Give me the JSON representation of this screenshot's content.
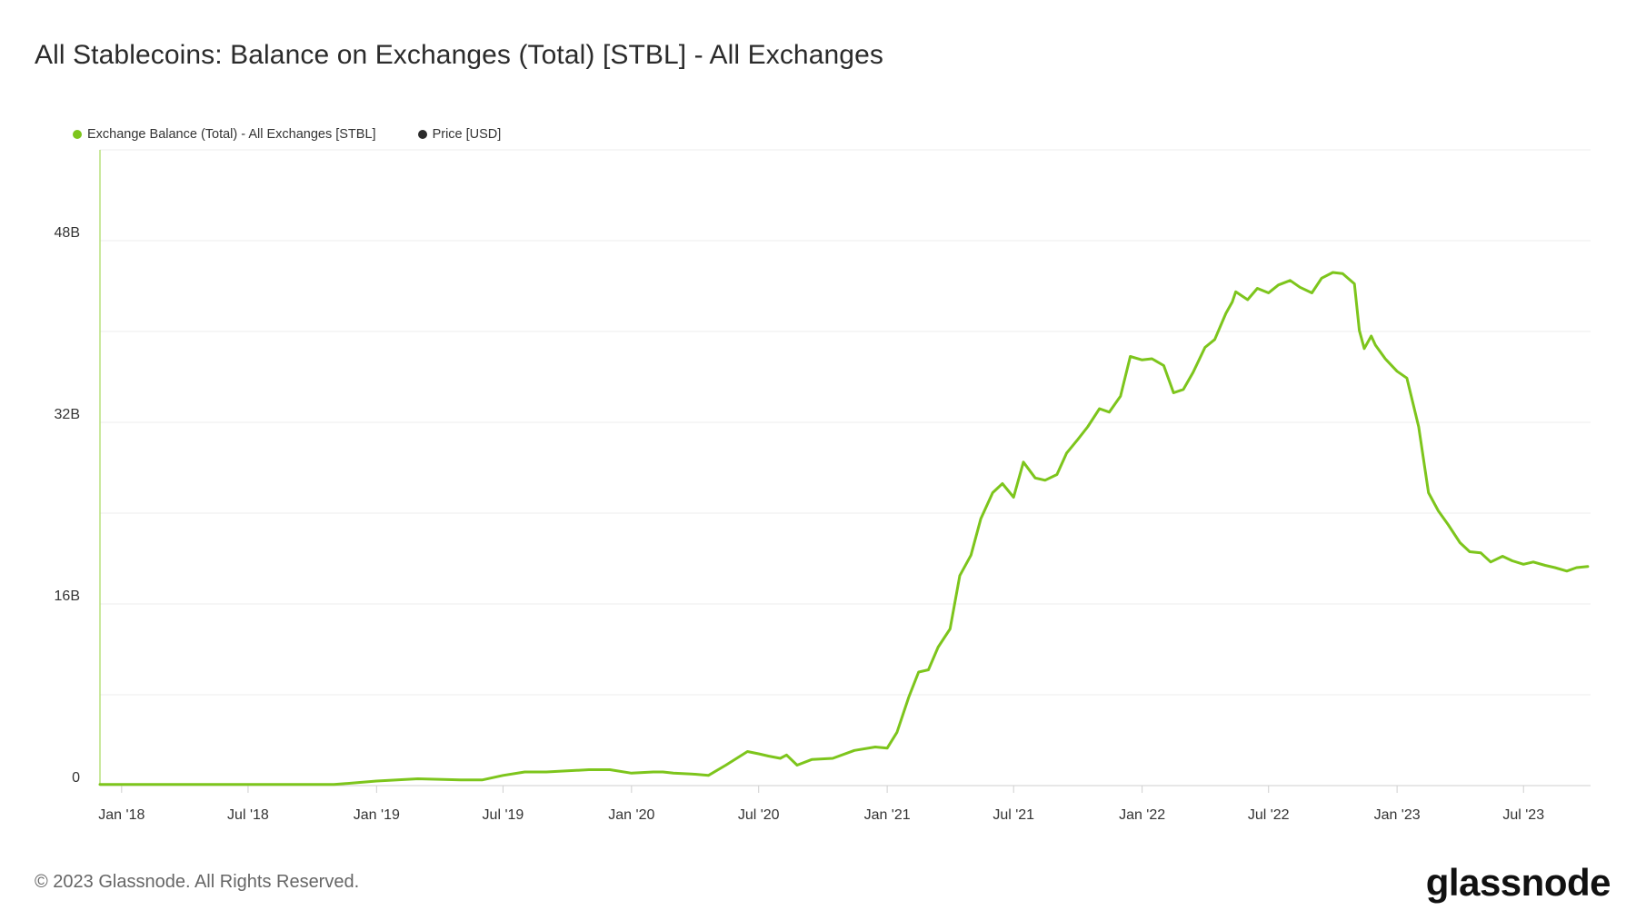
{
  "title": "All Stablecoins: Balance on Exchanges (Total) [STBL] - All Exchanges",
  "legend": [
    {
      "label": "Exchange Balance (Total) - All Exchanges [STBL]",
      "color": "#7dc51c"
    },
    {
      "label": "Price [USD]",
      "color": "#2b2b2b"
    }
  ],
  "footer": "© 2023 Glassnode. All Rights Reserved.",
  "brand": "glassnode",
  "chart_data": {
    "type": "line",
    "series": [
      {
        "name": "Exchange Balance (Total) - All Exchanges [STBL]",
        "color": "#7dc51c",
        "x": [
          "2017-12-01",
          "2018-03-01",
          "2018-06-01",
          "2018-09-01",
          "2018-11-01",
          "2019-01-01",
          "2019-03-01",
          "2019-05-01",
          "2019-06-01",
          "2019-07-01",
          "2019-08-01",
          "2019-09-01",
          "2019-10-01",
          "2019-11-01",
          "2019-12-01",
          "2020-01-01",
          "2020-02-01",
          "2020-02-15",
          "2020-03-01",
          "2020-04-01",
          "2020-04-20",
          "2020-05-15",
          "2020-06-15",
          "2020-07-01",
          "2020-07-15",
          "2020-08-01",
          "2020-08-10",
          "2020-08-25",
          "2020-09-15",
          "2020-10-15",
          "2020-11-15",
          "2020-12-15",
          "2021-01-01",
          "2021-01-15",
          "2021-02-01",
          "2021-02-15",
          "2021-03-01",
          "2021-03-15",
          "2021-04-01",
          "2021-04-15",
          "2021-05-01",
          "2021-05-15",
          "2021-06-01",
          "2021-06-15",
          "2021-07-01",
          "2021-07-15",
          "2021-08-01",
          "2021-08-15",
          "2021-09-01",
          "2021-09-15",
          "2021-10-01",
          "2021-10-15",
          "2021-11-01",
          "2021-11-15",
          "2021-12-01",
          "2021-12-15",
          "2022-01-01",
          "2022-01-15",
          "2022-02-01",
          "2022-02-15",
          "2022-03-01",
          "2022-03-15",
          "2022-04-01",
          "2022-04-15",
          "2022-05-01",
          "2022-05-10",
          "2022-05-15",
          "2022-06-01",
          "2022-06-15",
          "2022-07-01",
          "2022-07-15",
          "2022-08-01",
          "2022-08-15",
          "2022-09-01",
          "2022-09-15",
          "2022-10-01",
          "2022-10-15",
          "2022-11-01",
          "2022-11-08",
          "2022-11-15",
          "2022-11-25",
          "2022-12-01",
          "2022-12-15",
          "2023-01-01",
          "2023-01-15",
          "2023-02-01",
          "2023-02-15",
          "2023-03-01",
          "2023-03-15",
          "2023-04-01",
          "2023-04-15",
          "2023-05-01",
          "2023-05-15",
          "2023-06-01",
          "2023-06-15",
          "2023-07-01",
          "2023-07-15",
          "2023-08-01",
          "2023-08-15",
          "2023-09-01",
          "2023-09-15",
          "2023-10-01"
        ],
        "y": [
          0.1,
          0.1,
          0.1,
          0.1,
          0.1,
          0.4,
          0.6,
          0.5,
          0.5,
          0.9,
          1.2,
          1.2,
          1.3,
          1.4,
          1.4,
          1.1,
          1.2,
          1.2,
          1.1,
          1.0,
          0.9,
          1.8,
          3.0,
          2.8,
          2.6,
          2.4,
          2.7,
          1.8,
          2.3,
          2.4,
          3.1,
          3.4,
          3.3,
          4.7,
          7.8,
          10.0,
          10.2,
          12.2,
          13.8,
          18.5,
          20.3,
          23.5,
          25.8,
          26.6,
          25.4,
          28.5,
          27.1,
          26.9,
          27.4,
          29.3,
          30.5,
          31.6,
          33.2,
          32.9,
          34.3,
          37.8,
          37.5,
          37.6,
          37.0,
          34.6,
          34.9,
          36.4,
          38.6,
          39.3,
          41.6,
          42.6,
          43.5,
          42.8,
          43.8,
          43.4,
          44.1,
          44.5,
          43.9,
          43.4,
          44.7,
          45.2,
          45.1,
          44.2,
          40.1,
          38.5,
          39.6,
          38.8,
          37.6,
          36.5,
          35.9,
          31.6,
          25.8,
          24.2,
          23.0,
          21.4,
          20.6,
          20.5,
          19.7,
          20.2,
          19.8,
          19.5,
          19.7,
          19.4,
          19.2,
          18.9,
          19.2,
          19.3
        ]
      }
    ],
    "x_ticks": [
      "Jan '18",
      "Jul '18",
      "Jan '19",
      "Jul '19",
      "Jan '20",
      "Jul '20",
      "Jan '21",
      "Jul '21",
      "Jan '22",
      "Jul '22",
      "Jan '23",
      "Jul '23"
    ],
    "x_tick_dates": [
      "2018-01-01",
      "2018-07-01",
      "2019-01-01",
      "2019-07-01",
      "2020-01-01",
      "2020-07-01",
      "2021-01-01",
      "2021-07-01",
      "2022-01-01",
      "2022-07-01",
      "2023-01-01",
      "2023-07-01"
    ],
    "y_ticks": [
      {
        "value": 0,
        "label": "0"
      },
      {
        "value": 16,
        "label": "16B"
      },
      {
        "value": 32,
        "label": "32B"
      },
      {
        "value": 48,
        "label": "48B"
      }
    ],
    "y_gridlines": [
      0,
      8,
      16,
      24,
      32,
      40,
      48,
      56
    ],
    "ylim": [
      0,
      56
    ],
    "xlim": [
      "2017-12-01",
      "2023-10-05"
    ],
    "grid": true,
    "legend_position": "top-left",
    "xlabel": "",
    "ylabel": ""
  }
}
